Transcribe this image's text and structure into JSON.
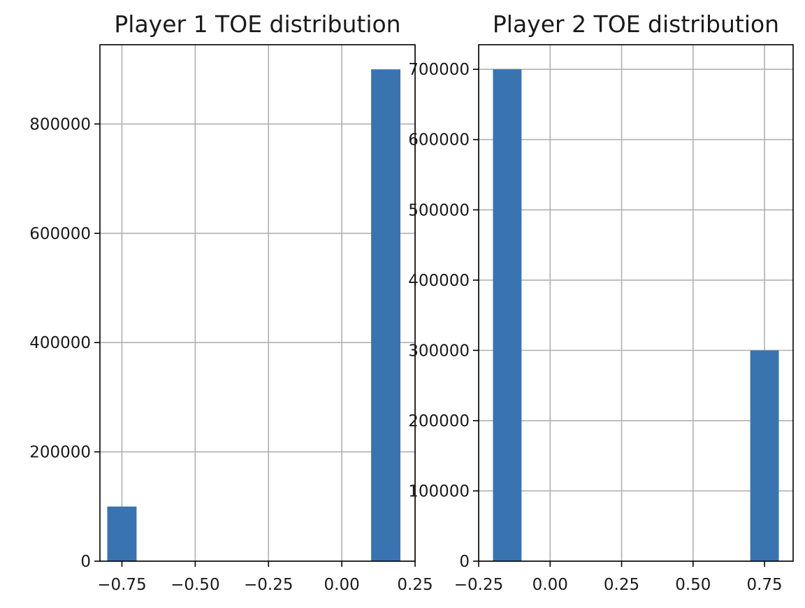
{
  "colors": {
    "bar": "#3a74b0",
    "grid": "#b0b0b0",
    "axis": "#000000",
    "text": "#1a1a1a"
  },
  "chart_data": [
    {
      "type": "bar",
      "title": "Player 1 TOE distribution",
      "xlabel": "",
      "ylabel": "",
      "grid": true,
      "xlim": [
        -0.825,
        0.25
      ],
      "ylim": [
        0,
        945000
      ],
      "xticks": [
        -0.75,
        -0.5,
        -0.25,
        0.0,
        0.25
      ],
      "xtick_labels": [
        "−0.75",
        "−0.50",
        "−0.25",
        "0.00",
        "0.25"
      ],
      "yticks": [
        0,
        200000,
        400000,
        600000,
        800000
      ],
      "ytick_labels": [
        "0",
        "200000",
        "400000",
        "600000",
        "800000"
      ],
      "bars": [
        {
          "x0": -0.8,
          "x1": -0.7,
          "value": 100000
        },
        {
          "x0": 0.1,
          "x1": 0.2,
          "value": 900000
        }
      ]
    },
    {
      "type": "bar",
      "title": "Player 2 TOE distribution",
      "xlabel": "",
      "ylabel": "",
      "grid": true,
      "xlim": [
        -0.25,
        0.85
      ],
      "ylim": [
        0,
        735000
      ],
      "xticks": [
        -0.25,
        0.0,
        0.25,
        0.5,
        0.75
      ],
      "xtick_labels": [
        "−0.25",
        "0.00",
        "0.25",
        "0.50",
        "0.75"
      ],
      "yticks": [
        0,
        100000,
        200000,
        300000,
        400000,
        500000,
        600000,
        700000
      ],
      "ytick_labels": [
        "0",
        "100000",
        "200000",
        "300000",
        "400000",
        "500000",
        "600000",
        "700000"
      ],
      "bars": [
        {
          "x0": -0.2,
          "x1": -0.1,
          "value": 700000
        },
        {
          "x0": 0.7,
          "x1": 0.8,
          "value": 300000
        }
      ]
    }
  ]
}
